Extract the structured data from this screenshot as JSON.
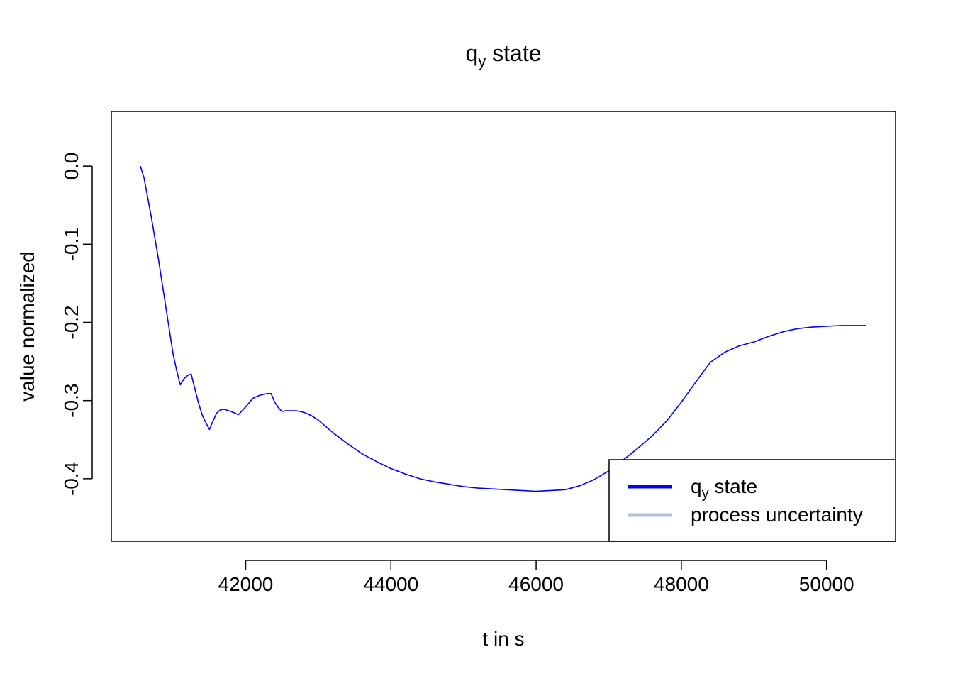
{
  "chart_data": {
    "type": "line",
    "title": {
      "main": "q",
      "sub": "y",
      "rest": " state"
    },
    "xlabel": "t in s",
    "ylabel": "value normalized",
    "xlim": [
      40150,
      50950
    ],
    "ylim": [
      -0.48,
      0.07
    ],
    "xticks": [
      {
        "value": 42000,
        "label": "42000"
      },
      {
        "value": 44000,
        "label": "44000"
      },
      {
        "value": 46000,
        "label": "46000"
      },
      {
        "value": 48000,
        "label": "48000"
      },
      {
        "value": 50000,
        "label": "50000"
      }
    ],
    "yticks": [
      {
        "value": 0.0,
        "label": "0.0"
      },
      {
        "value": -0.1,
        "label": "-0.1"
      },
      {
        "value": -0.2,
        "label": "-0.2"
      },
      {
        "value": -0.3,
        "label": "-0.3"
      },
      {
        "value": -0.4,
        "label": "-0.4"
      }
    ],
    "grid": false,
    "legend": {
      "position": "bottom-right",
      "entries": [
        {
          "main": "q",
          "sub": "y",
          "rest": " state",
          "color": "#0000ff"
        },
        {
          "main": "process uncertainty",
          "sub": "",
          "rest": "",
          "color": "#b0c4de"
        }
      ]
    },
    "series": [
      {
        "color": "#0000ff",
        "x": [
          40550,
          40600,
          40700,
          40800,
          40900,
          41000,
          41050,
          41100,
          41150,
          41200,
          41250,
          41300,
          41350,
          41400,
          41450,
          41500,
          41550,
          41600,
          41650,
          41700,
          41800,
          41900,
          42000,
          42100,
          42200,
          42300,
          42350,
          42400,
          42450,
          42500,
          42550,
          42600,
          42700,
          42800,
          42900,
          43000,
          43200,
          43400,
          43600,
          43800,
          44000,
          44200,
          44400,
          44600,
          44800,
          45000,
          45200,
          45400,
          45600,
          45800,
          46000,
          46200,
          46400,
          46600,
          46800,
          47000,
          47200,
          47400,
          47600,
          47800,
          48000,
          48200,
          48400,
          48600,
          48800,
          49000,
          49200,
          49400,
          49600,
          49800,
          50000,
          50200,
          50400,
          50550
        ],
        "y": [
          0.0,
          -0.015,
          -0.065,
          -0.12,
          -0.18,
          -0.24,
          -0.262,
          -0.28,
          -0.272,
          -0.268,
          -0.266,
          -0.285,
          -0.303,
          -0.318,
          -0.328,
          -0.337,
          -0.326,
          -0.316,
          -0.312,
          -0.311,
          -0.314,
          -0.318,
          -0.308,
          -0.297,
          -0.293,
          -0.291,
          -0.291,
          -0.302,
          -0.309,
          -0.314,
          -0.313,
          -0.313,
          -0.313,
          -0.315,
          -0.319,
          -0.325,
          -0.341,
          -0.355,
          -0.368,
          -0.378,
          -0.387,
          -0.394,
          -0.4,
          -0.404,
          -0.407,
          -0.41,
          -0.412,
          -0.413,
          -0.414,
          -0.415,
          -0.416,
          -0.415,
          -0.414,
          -0.409,
          -0.401,
          -0.39,
          -0.376,
          -0.361,
          -0.345,
          -0.326,
          -0.302,
          -0.276,
          -0.251,
          -0.238,
          -0.23,
          -0.225,
          -0.218,
          -0.212,
          -0.208,
          -0.206,
          -0.205,
          -0.204,
          -0.204,
          -0.204
        ]
      }
    ]
  }
}
